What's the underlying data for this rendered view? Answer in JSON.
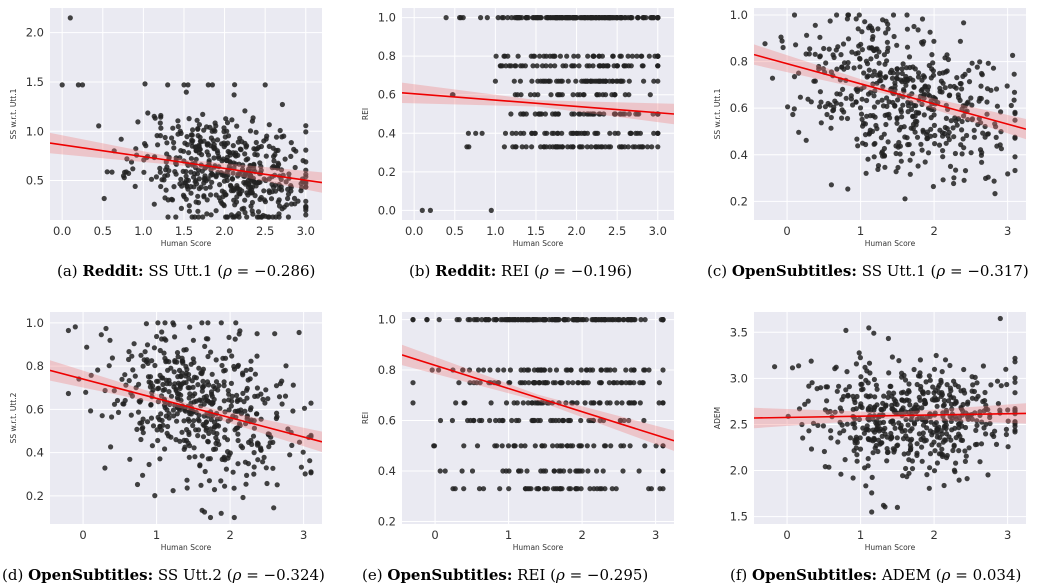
{
  "chart_data": [
    {
      "id": "a",
      "type": "scatter",
      "xlabel": "Human Score",
      "ylabel": "SS w.r.t. Utt.1",
      "xlim": [
        -0.15,
        3.2
      ],
      "ylim": [
        0.1,
        2.25
      ],
      "xticks": [
        0.0,
        0.5,
        1.0,
        1.5,
        2.0,
        2.5,
        3.0
      ],
      "xtick_labels": [
        "0.0",
        "0.5",
        "1.0",
        "1.5",
        "2.0",
        "2.5",
        "3.0"
      ],
      "yticks": [
        0.5,
        1.0,
        1.5,
        2.0
      ],
      "ytick_labels": [
        "0.5",
        "1.0",
        "1.5",
        "2.0"
      ],
      "regression": {
        "x0": -0.15,
        "y0": 0.88,
        "x1": 3.2,
        "y1": 0.48
      },
      "cloud": {
        "n": 520,
        "mx": 2.0,
        "sx": 0.55,
        "my": 0.62,
        "sy": 0.28,
        "xmin": 0.0,
        "xmax": 3.0,
        "ymin": 0.13,
        "ymax": 1.48,
        "slope": -0.12,
        "seed": 11
      },
      "extra_points": [
        [
          0.1,
          2.15
        ],
        [
          0.0,
          1.47
        ],
        [
          0.2,
          1.47
        ],
        [
          0.25,
          1.47
        ],
        [
          1.3,
          1.47
        ],
        [
          1.5,
          1.47
        ],
        [
          1.55,
          1.47
        ],
        [
          1.8,
          1.47
        ],
        [
          1.85,
          1.47
        ],
        [
          2.5,
          1.47
        ]
      ],
      "caption": {
        "source": "Reddit:",
        "metric": "SS Utt.1",
        "rho": "−0.286",
        "label": "(a)"
      }
    },
    {
      "id": "b",
      "type": "scatter",
      "xlabel": "Human Score",
      "ylabel": "REI",
      "xlim": [
        -0.15,
        3.2
      ],
      "ylim": [
        -0.05,
        1.05
      ],
      "xticks": [
        0.0,
        0.5,
        1.0,
        1.5,
        2.0,
        2.5,
        3.0
      ],
      "xtick_labels": [
        "0.0",
        "0.5",
        "1.0",
        "1.5",
        "2.0",
        "2.5",
        "3.0"
      ],
      "yticks": [
        0.0,
        0.2,
        0.4,
        0.6,
        0.8,
        1.0
      ],
      "ytick_labels": [
        "0.0",
        "0.2",
        "0.4",
        "0.6",
        "0.8",
        "1.0"
      ],
      "regression": {
        "x0": -0.15,
        "y0": 0.61,
        "x1": 3.2,
        "y1": 0.5
      },
      "cloud": {
        "n": 480,
        "mx": 2.0,
        "sx": 0.6,
        "my": 0.52,
        "sy": 0.18,
        "xmin": 0.3,
        "xmax": 3.0,
        "ymin": 0.18,
        "ymax": 1.0,
        "slope": -0.05,
        "seed": 23,
        "levels": [
          0.33,
          0.4,
          0.5,
          0.6,
          0.67,
          0.75,
          0.8,
          1.0
        ]
      },
      "extra_points": [
        [
          0.1,
          0.0
        ],
        [
          0.2,
          0.0
        ],
        [
          0.95,
          0.0
        ],
        [
          0.9,
          1.0
        ],
        [
          1.1,
          1.0
        ],
        [
          1.2,
          1.0
        ],
        [
          1.3,
          1.0
        ]
      ],
      "caption": {
        "source": "Reddit:",
        "metric": "REI",
        "rho": "−0.196",
        "label": "(b)"
      }
    },
    {
      "id": "c",
      "type": "scatter",
      "xlabel": "Human Score",
      "ylabel": "SS w.r.t. Utt.1",
      "xlim": [
        -0.45,
        3.25
      ],
      "ylim": [
        0.12,
        1.03
      ],
      "xticks": [
        0,
        1,
        2,
        3
      ],
      "xtick_labels": [
        "0",
        "1",
        "2",
        "3"
      ],
      "yticks": [
        0.2,
        0.4,
        0.6,
        0.8,
        1.0
      ],
      "ytick_labels": [
        "0.2",
        "0.4",
        "0.6",
        "0.8",
        "1.0"
      ],
      "regression": {
        "x0": -0.45,
        "y0": 0.83,
        "x1": 3.25,
        "y1": 0.51
      },
      "cloud": {
        "n": 520,
        "mx": 1.6,
        "sx": 0.7,
        "my": 0.66,
        "sy": 0.16,
        "xmin": -0.3,
        "xmax": 3.1,
        "ymin": 0.15,
        "ymax": 1.0,
        "slope": -0.08,
        "seed": 37
      },
      "extra_points": [],
      "caption": {
        "source": "OpenSubtitles:",
        "metric": "SS Utt.1",
        "rho": "−0.317",
        "label": "(c)"
      }
    },
    {
      "id": "d",
      "type": "scatter",
      "xlabel": "Human Score",
      "ylabel": "SS w.r.t. Utt.2",
      "xlim": [
        -0.45,
        3.25
      ],
      "ylim": [
        0.07,
        1.05
      ],
      "xticks": [
        0,
        1,
        2,
        3
      ],
      "xtick_labels": [
        "0",
        "1",
        "2",
        "3"
      ],
      "yticks": [
        0.2,
        0.4,
        0.6,
        0.8,
        1.0
      ],
      "ytick_labels": [
        "0.2",
        "0.4",
        "0.6",
        "0.8",
        "1.0"
      ],
      "regression": {
        "x0": -0.45,
        "y0": 0.78,
        "x1": 3.25,
        "y1": 0.45
      },
      "cloud": {
        "n": 520,
        "mx": 1.65,
        "sx": 0.7,
        "my": 0.6,
        "sy": 0.18,
        "xmin": -0.2,
        "xmax": 3.1,
        "ymin": 0.1,
        "ymax": 1.0,
        "slope": -0.09,
        "seed": 53
      },
      "extra_points": [],
      "caption": {
        "source": "OpenSubtitles:",
        "metric": "SS Utt.2",
        "rho": "−0.324",
        "label": "(d)"
      }
    },
    {
      "id": "e",
      "type": "scatter",
      "xlabel": "Human Score",
      "ylabel": "REI",
      "xlim": [
        -0.45,
        3.25
      ],
      "ylim": [
        0.19,
        1.03
      ],
      "xticks": [
        0,
        1,
        2,
        3
      ],
      "xtick_labels": [
        "0",
        "1",
        "2",
        "3"
      ],
      "yticks": [
        0.2,
        0.4,
        0.6,
        0.8,
        1.0
      ],
      "ytick_labels": [
        "0.2",
        "0.4",
        "0.6",
        "0.8",
        "1.0"
      ],
      "regression": {
        "x0": -0.45,
        "y0": 0.86,
        "x1": 3.25,
        "y1": 0.52
      },
      "cloud": {
        "n": 470,
        "mx": 1.6,
        "sx": 0.8,
        "my": 0.62,
        "sy": 0.18,
        "xmin": -0.3,
        "xmax": 3.1,
        "ymin": 0.25,
        "ymax": 1.0,
        "slope": -0.1,
        "seed": 71,
        "levels": [
          0.33,
          0.4,
          0.5,
          0.6,
          0.67,
          0.75,
          0.8,
          1.0
        ]
      },
      "extra_points": [],
      "caption": {
        "source": "OpenSubtitles:",
        "metric": "REI",
        "rho": "−0.295",
        "label": "(e)"
      }
    },
    {
      "id": "f",
      "type": "scatter",
      "xlabel": "Human Score",
      "ylabel": "ADEM",
      "xlim": [
        -0.45,
        3.25
      ],
      "ylim": [
        1.42,
        3.72
      ],
      "xticks": [
        0,
        1,
        2,
        3
      ],
      "xtick_labels": [
        "0",
        "1",
        "2",
        "3"
      ],
      "yticks": [
        1.5,
        2.0,
        2.5,
        3.0,
        3.5
      ],
      "ytick_labels": [
        "1.5",
        "2.0",
        "2.5",
        "3.0",
        "3.5"
      ],
      "regression": {
        "x0": -0.45,
        "y0": 2.57,
        "x1": 3.25,
        "y1": 2.62
      },
      "cloud": {
        "n": 540,
        "mx": 1.75,
        "sx": 0.7,
        "my": 2.58,
        "sy": 0.32,
        "xmin": -0.2,
        "xmax": 3.1,
        "ymin": 1.55,
        "ymax": 3.6,
        "slope": 0.0,
        "seed": 89
      },
      "extra_points": [
        [
          2.9,
          3.65
        ],
        [
          0.8,
          3.52
        ],
        [
          1.5,
          1.6
        ]
      ],
      "caption": {
        "source": "OpenSubtitles:",
        "metric": "ADEM",
        "rho": "0.034",
        "label": "(f)"
      }
    }
  ]
}
